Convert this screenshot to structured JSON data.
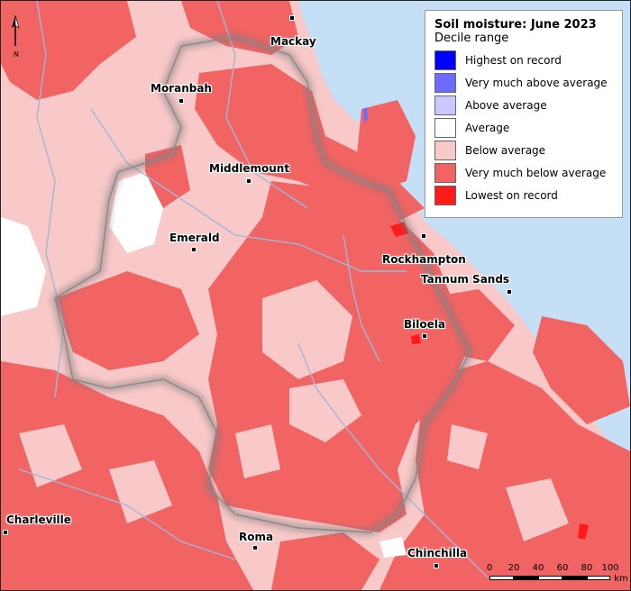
{
  "legend": {
    "title": "Soil moisture: June 2023",
    "subtitle": "Decile range",
    "items": [
      {
        "label": "Highest on record",
        "color": "#0000ff"
      },
      {
        "label": "Very much above average",
        "color": "#6b6bff"
      },
      {
        "label": "Above average",
        "color": "#c9c9ff"
      },
      {
        "label": "Average",
        "color": "#ffffff"
      },
      {
        "label": "Below average",
        "color": "#f9c8c8"
      },
      {
        "label": "Very much below average",
        "color": "#f26464"
      },
      {
        "label": "Lowest on record",
        "color": "#ff1a1a"
      }
    ]
  },
  "towns": [
    {
      "name": "Mackay"
    },
    {
      "name": "Moranbah"
    },
    {
      "name": "Middlemount"
    },
    {
      "name": "Emerald"
    },
    {
      "name": "Rockhampton"
    },
    {
      "name": "Tannum Sands"
    },
    {
      "name": "Biloela"
    },
    {
      "name": "Charleville"
    },
    {
      "name": "Roma"
    },
    {
      "name": "Chinchilla"
    }
  ],
  "north_arrow": {
    "label": "N"
  },
  "scale": {
    "ticks": [
      "0",
      "20",
      "40",
      "60",
      "80",
      "100"
    ],
    "unit": "km"
  },
  "colors": {
    "sea": "#c5dff7",
    "river": "#9fb8d8",
    "boundary": "#8a8a8a"
  }
}
